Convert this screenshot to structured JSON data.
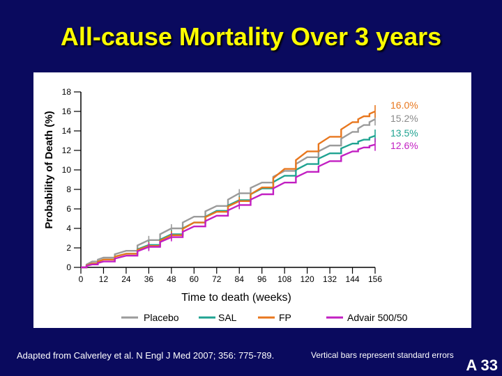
{
  "title": "All-cause Mortality Over 3 years",
  "footnote_left": "Adapted from Calverley et al. N Engl J Med 2007; 356: 775-789.",
  "footnote_right": "Vertical bars represent standard errors",
  "slide_number": "A 33",
  "chart_data": {
    "type": "line",
    "title": "",
    "xlabel": "Time to death (weeks)",
    "ylabel": "Probability of Death (%)",
    "xlim": [
      0,
      156
    ],
    "ylim": [
      0,
      18
    ],
    "xticks": [
      0,
      12,
      24,
      36,
      48,
      60,
      72,
      84,
      96,
      108,
      120,
      132,
      144,
      156
    ],
    "yticks": [
      0,
      2,
      4,
      6,
      8,
      10,
      12,
      14,
      16,
      18
    ],
    "grid": false,
    "legend_position": "bottom",
    "end_labels": [
      {
        "text": "16.0%",
        "color": "#e8771e"
      },
      {
        "text": "15.2%",
        "color": "#8a8a8a"
      },
      {
        "text": "13.5%",
        "color": "#1fa391"
      },
      {
        "text": "12.6%",
        "color": "#c21fc2"
      }
    ],
    "series": [
      {
        "name": "Placebo",
        "color": "#9b9b9b",
        "x": [
          0,
          6,
          12,
          24,
          36,
          48,
          60,
          72,
          84,
          96,
          108,
          120,
          132,
          144,
          150,
          156
        ],
        "y": [
          0,
          0.6,
          1.0,
          1.7,
          2.8,
          4.0,
          5.2,
          6.3,
          7.6,
          8.7,
          9.9,
          11.3,
          12.5,
          13.9,
          14.6,
          15.2
        ]
      },
      {
        "name": "SAL",
        "color": "#1fa391",
        "x": [
          0,
          6,
          12,
          24,
          36,
          48,
          60,
          72,
          84,
          96,
          108,
          120,
          132,
          144,
          150,
          156
        ],
        "y": [
          0,
          0.4,
          0.8,
          1.4,
          2.3,
          3.4,
          4.6,
          5.8,
          6.9,
          8.1,
          9.4,
          10.6,
          11.7,
          12.7,
          13.1,
          13.5
        ]
      },
      {
        "name": "FP",
        "color": "#e8771e",
        "x": [
          0,
          6,
          12,
          24,
          36,
          48,
          60,
          72,
          84,
          96,
          108,
          120,
          132,
          144,
          150,
          156
        ],
        "y": [
          0,
          0.4,
          0.8,
          1.4,
          2.2,
          3.3,
          4.6,
          5.7,
          6.8,
          8.2,
          10.1,
          11.9,
          13.4,
          14.9,
          15.5,
          16.0
        ]
      },
      {
        "name": "Advair 500/50",
        "color": "#c21fc2",
        "x": [
          0,
          6,
          12,
          24,
          36,
          48,
          60,
          72,
          84,
          96,
          108,
          120,
          132,
          144,
          150,
          156
        ],
        "y": [
          0,
          0.3,
          0.6,
          1.2,
          2.1,
          3.1,
          4.2,
          5.3,
          6.4,
          7.5,
          8.7,
          9.8,
          10.9,
          11.9,
          12.3,
          12.6
        ]
      }
    ]
  }
}
